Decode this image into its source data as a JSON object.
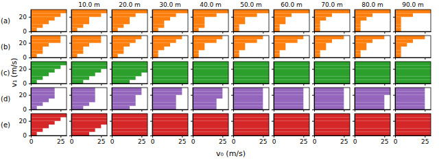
{
  "chart_data": {
    "type": "bar",
    "orientation": "horizontal",
    "xlabel": "v₀ (m/s)",
    "ylabel": "v₁ (m/s)",
    "xlim": [
      0,
      30
    ],
    "xticks": [
      0,
      25
    ],
    "ylim": [
      0,
      30
    ],
    "yticks": [
      0,
      20
    ],
    "bins": [
      0,
      5,
      10,
      15,
      20,
      25,
      30
    ],
    "categories": [
      null,
      "10.0 m",
      "20.0 m",
      "30.0 m",
      "40.0 m",
      "50.0 m",
      "60.0 m",
      "70.0 m",
      "80.0 m",
      "90.0 m"
    ],
    "series": [
      {
        "name": "(a)",
        "color": "#ff7f0e",
        "values": [
          [
            5,
            10,
            15,
            20,
            25,
            30
          ],
          [
            5,
            10,
            15,
            15,
            25,
            30
          ],
          [
            5,
            10,
            15,
            15,
            20,
            30
          ],
          [
            5,
            10,
            10,
            15,
            20,
            30
          ],
          [
            5,
            10,
            10,
            10,
            20,
            30
          ],
          [
            5,
            5,
            10,
            10,
            20,
            30
          ],
          [
            5,
            5,
            10,
            10,
            15,
            30
          ],
          [
            5,
            5,
            5,
            10,
            15,
            30
          ],
          [
            5,
            5,
            5,
            10,
            15,
            30
          ],
          [
            5,
            5,
            5,
            5,
            15,
            30
          ]
        ]
      },
      {
        "name": "(b)",
        "color": "#ff7f0e",
        "values": [
          [
            5,
            10,
            10,
            15,
            25,
            25
          ],
          [
            5,
            10,
            10,
            15,
            25,
            25
          ],
          [
            5,
            10,
            10,
            15,
            20,
            25
          ],
          [
            5,
            5,
            10,
            15,
            20,
            25
          ],
          [
            5,
            5,
            10,
            10,
            20,
            25
          ],
          [
            5,
            5,
            10,
            10,
            20,
            25
          ],
          [
            5,
            5,
            10,
            10,
            20,
            25
          ],
          [
            5,
            5,
            10,
            10,
            15,
            25
          ],
          [
            5,
            5,
            10,
            10,
            15,
            25
          ],
          [
            5,
            5,
            5,
            10,
            15,
            25
          ]
        ]
      },
      {
        "name": "(c)",
        "color": "#2ca02c",
        "values": [
          [
            5,
            10,
            15,
            20,
            25,
            30
          ],
          [
            10,
            15,
            20,
            25,
            30,
            30
          ],
          [
            15,
            20,
            25,
            30,
            30,
            30
          ],
          [
            30,
            30,
            30,
            30,
            30,
            30
          ],
          [
            30,
            30,
            30,
            30,
            30,
            30
          ],
          [
            30,
            30,
            30,
            30,
            30,
            30
          ],
          [
            30,
            30,
            30,
            30,
            30,
            30
          ],
          [
            30,
            30,
            30,
            30,
            30,
            30
          ],
          [
            30,
            30,
            30,
            30,
            30,
            30
          ],
          [
            30,
            30,
            30,
            30,
            30,
            30
          ]
        ]
      },
      {
        "name": "(d)",
        "color": "#9467bd",
        "values": [
          [
            5,
            10,
            15,
            20,
            20,
            20
          ],
          [
            10,
            15,
            20,
            20,
            20,
            20
          ],
          [
            15,
            20,
            20,
            20,
            25,
            25
          ],
          [
            20,
            20,
            20,
            20,
            25,
            25
          ],
          [
            20,
            20,
            20,
            25,
            25,
            25
          ],
          [
            25,
            25,
            25,
            25,
            25,
            25
          ],
          [
            25,
            25,
            25,
            25,
            25,
            25
          ],
          [
            25,
            25,
            25,
            25,
            25,
            25
          ],
          [
            25,
            25,
            25,
            25,
            30,
            30
          ],
          [
            25,
            25,
            25,
            25,
            25,
            25
          ]
        ]
      },
      {
        "name": "(e)",
        "color": "#d62728",
        "values": [
          [
            5,
            10,
            15,
            20,
            25,
            30
          ],
          [
            15,
            20,
            25,
            30,
            30,
            30
          ],
          [
            30,
            30,
            30,
            30,
            30,
            30
          ],
          [
            30,
            30,
            30,
            30,
            30,
            30
          ],
          [
            30,
            30,
            30,
            30,
            30,
            30
          ],
          [
            30,
            30,
            30,
            30,
            30,
            30
          ],
          [
            30,
            30,
            30,
            30,
            30,
            30
          ],
          [
            30,
            30,
            30,
            30,
            30,
            30
          ],
          [
            30,
            30,
            30,
            30,
            30,
            30
          ],
          [
            30,
            30,
            30,
            30,
            30,
            30
          ]
        ]
      }
    ]
  }
}
